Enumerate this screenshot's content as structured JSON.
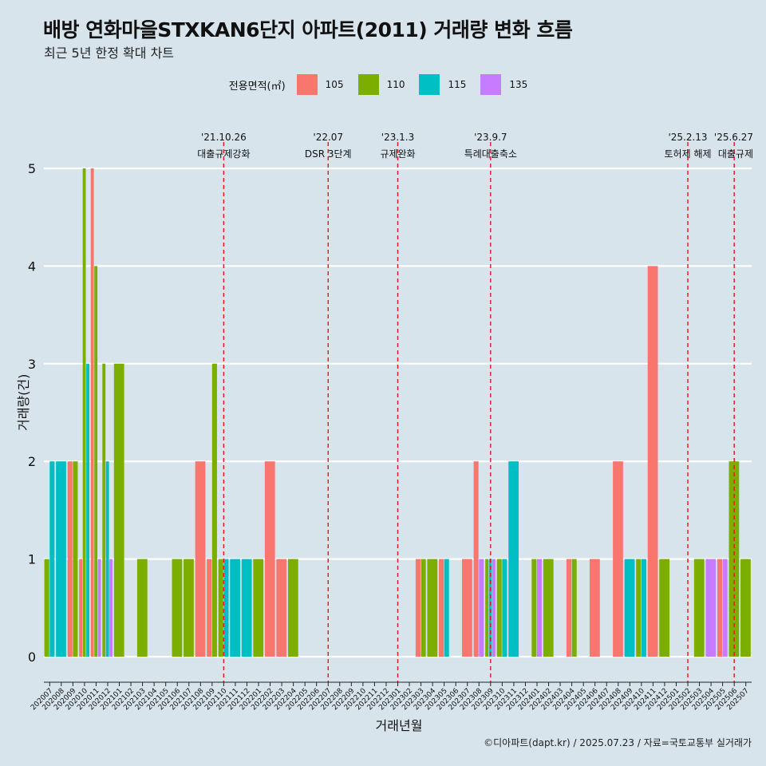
{
  "header": {
    "title": "배방 연화마을STXKAN6단지 아파트(2011) 거래량 변화 흐름",
    "subtitle": "최근 5년 한정 확대 차트"
  },
  "caption": "©디아파트(dapt.kr) / 2025.07.23 / 자료=국토교통부 실거래가",
  "legend": {
    "title": "전용면적(㎡)",
    "items": [
      {
        "label": "105",
        "color": "#f8766d"
      },
      {
        "label": "110",
        "color": "#7cae00"
      },
      {
        "label": "115",
        "color": "#00bfc4"
      },
      {
        "label": "135",
        "color": "#c77cff"
      }
    ]
  },
  "chart_data": {
    "type": "bar",
    "xlabel": "거래년월",
    "ylabel": "거래량(건)",
    "ylim": [
      0,
      5
    ],
    "yticks": [
      0,
      1,
      2,
      3,
      4,
      5
    ],
    "grid": true,
    "legend_position": "top",
    "categories": [
      "202007",
      "202008",
      "202009",
      "202010",
      "202011",
      "202012",
      "202101",
      "202102",
      "202103",
      "202104",
      "202105",
      "202106",
      "202107",
      "202108",
      "202109",
      "202110",
      "202111",
      "202112",
      "202201",
      "202202",
      "202203",
      "202204",
      "202205",
      "202206",
      "202207",
      "202208",
      "202209",
      "202210",
      "202211",
      "202212",
      "202301",
      "202302",
      "202303",
      "202304",
      "202305",
      "202306",
      "202307",
      "202308",
      "202309",
      "202310",
      "202311",
      "202312",
      "202401",
      "202402",
      "202403",
      "202404",
      "202405",
      "202406",
      "202407",
      "202408",
      "202409",
      "202410",
      "202411",
      "202412",
      "202501",
      "202502",
      "202503",
      "202504",
      "202505",
      "202506",
      "202507"
    ],
    "series": [
      {
        "name": "105",
        "color": "#f8766d",
        "values": [
          0,
          0,
          2,
          1,
          5,
          0,
          0,
          0,
          0,
          0,
          0,
          0,
          0,
          2,
          1,
          0,
          0,
          0,
          0,
          2,
          1,
          0,
          0,
          0,
          0,
          0,
          0,
          0,
          0,
          0,
          0,
          0,
          1,
          0,
          1,
          0,
          1,
          2,
          0,
          0,
          0,
          0,
          0,
          0,
          0,
          1,
          0,
          1,
          0,
          2,
          0,
          0,
          4,
          0,
          0,
          0,
          0,
          0,
          1,
          0,
          0
        ]
      },
      {
        "name": "110",
        "color": "#7cae00",
        "values": [
          1,
          0,
          2,
          5,
          4,
          3,
          3,
          0,
          1,
          0,
          0,
          1,
          1,
          0,
          3,
          1,
          0,
          0,
          1,
          0,
          0,
          1,
          0,
          0,
          0,
          0,
          0,
          0,
          0,
          0,
          0,
          0,
          1,
          1,
          0,
          0,
          0,
          0,
          1,
          1,
          0,
          0,
          1,
          1,
          0,
          1,
          0,
          0,
          0,
          0,
          0,
          1,
          0,
          1,
          0,
          0,
          1,
          0,
          0,
          2,
          1
        ]
      },
      {
        "name": "115",
        "color": "#00bfc4",
        "values": [
          2,
          2,
          0,
          3,
          0,
          2,
          0,
          0,
          0,
          0,
          0,
          0,
          0,
          0,
          0,
          1,
          1,
          1,
          0,
          0,
          0,
          0,
          0,
          0,
          0,
          0,
          0,
          0,
          0,
          0,
          0,
          0,
          0,
          0,
          1,
          0,
          0,
          0,
          1,
          1,
          2,
          0,
          0,
          0,
          0,
          0,
          0,
          0,
          0,
          0,
          1,
          1,
          0,
          0,
          0,
          0,
          0,
          0,
          0,
          0,
          0
        ]
      },
      {
        "name": "135",
        "color": "#c77cff",
        "values": [
          0,
          0,
          0,
          0,
          1,
          1,
          0,
          0,
          0,
          0,
          0,
          0,
          0,
          0,
          0,
          0,
          0,
          0,
          0,
          0,
          0,
          0,
          0,
          0,
          0,
          0,
          0,
          0,
          0,
          0,
          0,
          0,
          0,
          0,
          0,
          0,
          0,
          1,
          1,
          0,
          0,
          0,
          1,
          0,
          0,
          0,
          0,
          0,
          0,
          0,
          0,
          0,
          0,
          0,
          0,
          0,
          0,
          1,
          1,
          0,
          0
        ]
      }
    ],
    "annotations": [
      {
        "x": "202110",
        "date": "'21.10.26",
        "label": "대출규제강화"
      },
      {
        "x": "202207",
        "date": "'22.07",
        "label": "DSR 3단계"
      },
      {
        "x": "202301",
        "date": "'23.1.3",
        "label": "규제완화"
      },
      {
        "x": "202309",
        "date": "'23.9.7",
        "label": "특례대출축소"
      },
      {
        "x": "202502",
        "date": "'25.2.13",
        "label": "토허제 해제"
      },
      {
        "x": "202506",
        "date": "'25.6.27",
        "label": "대출규제"
      }
    ]
  }
}
